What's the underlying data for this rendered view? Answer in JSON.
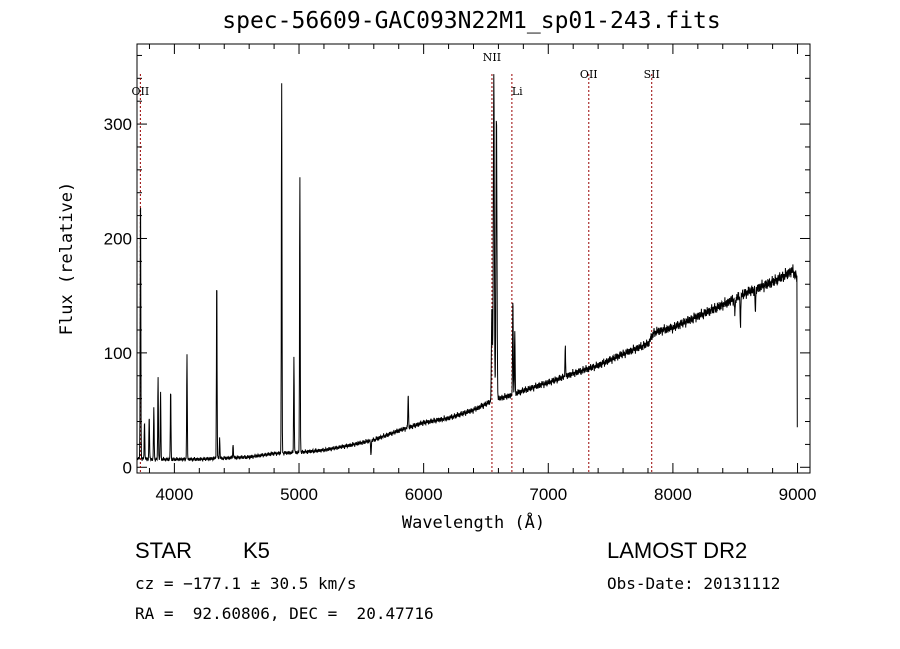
{
  "title": "spec-56609-GAC093N22M1_sp01-243.fits",
  "info": {
    "class_label": "STAR",
    "subclass_label": "K5",
    "survey_label": "LAMOST DR2",
    "cz_text": "cz = −177.1 ± 30.5 km/s",
    "obs_date_text": "Obs-Date: 20131112",
    "coords_text": "RA =  92.60806, DEC =  20.47716"
  },
  "chart_data": {
    "type": "line",
    "title": "spec-56609-GAC093N22M1_sp01-243.fits",
    "xlabel": "Wavelength (Å)",
    "ylabel": "Flux (relative)",
    "xlim": [
      3700,
      9100
    ],
    "ylim": [
      -5,
      370
    ],
    "xticks": [
      4000,
      5000,
      6000,
      7000,
      8000,
      9000
    ],
    "yticks": [
      0,
      100,
      200,
      300
    ],
    "continuum": {
      "x": [
        3700,
        3800,
        4000,
        4200,
        4400,
        4600,
        4800,
        5000,
        5200,
        5400,
        5600,
        5800,
        6000,
        6200,
        6400,
        6550,
        6600,
        6700,
        6800,
        7000,
        7200,
        7400,
        7600,
        7800,
        7850,
        8000,
        8200,
        8400,
        8600,
        8800,
        8900,
        8960,
        9000
      ],
      "y": [
        8,
        7,
        7,
        7,
        8,
        9,
        12,
        13,
        15,
        19,
        24,
        32,
        39,
        43,
        50,
        58,
        60,
        63,
        67,
        74,
        82,
        89,
        99,
        108,
        118,
        122,
        132,
        142,
        153,
        162,
        168,
        172,
        165
      ]
    },
    "emission_lines": [
      {
        "x": 3728,
        "peak": 245
      },
      {
        "x": 3760,
        "peak": 40
      },
      {
        "x": 3798,
        "peak": 45
      },
      {
        "x": 3835,
        "peak": 52
      },
      {
        "x": 3869,
        "peak": 80
      },
      {
        "x": 3889,
        "peak": 65
      },
      {
        "x": 3970,
        "peak": 68
      },
      {
        "x": 4101,
        "peak": 97
      },
      {
        "x": 4340,
        "peak": 166
      },
      {
        "x": 4363,
        "peak": 25
      },
      {
        "x": 4471,
        "peak": 20
      },
      {
        "x": 4861,
        "peak": 335
      },
      {
        "x": 4959,
        "peak": 96
      },
      {
        "x": 5007,
        "peak": 255
      },
      {
        "x": 5876,
        "peak": 65
      },
      {
        "x": 6548,
        "peak": 140
      },
      {
        "x": 6563,
        "peak": 345
      },
      {
        "x": 6584,
        "peak": 310
      },
      {
        "x": 6716,
        "peak": 150
      },
      {
        "x": 6731,
        "peak": 120
      },
      {
        "x": 7136,
        "peak": 105
      }
    ],
    "absorption_lines": [
      {
        "x": 5577,
        "depth": 12
      },
      {
        "x": 8498,
        "depth": 14
      },
      {
        "x": 8542,
        "depth": 24
      },
      {
        "x": 8662,
        "depth": 20
      }
    ],
    "line_markers": [
      {
        "label": "OII",
        "x": 3727
      },
      {
        "label": "NII",
        "x": 6548
      },
      {
        "label": "Li",
        "x": 6708
      },
      {
        "label": "OII",
        "x": 7325
      },
      {
        "label": "SII",
        "x": 7830
      }
    ],
    "colors": {
      "spectrum": "#000000",
      "markers": "#990000"
    }
  }
}
